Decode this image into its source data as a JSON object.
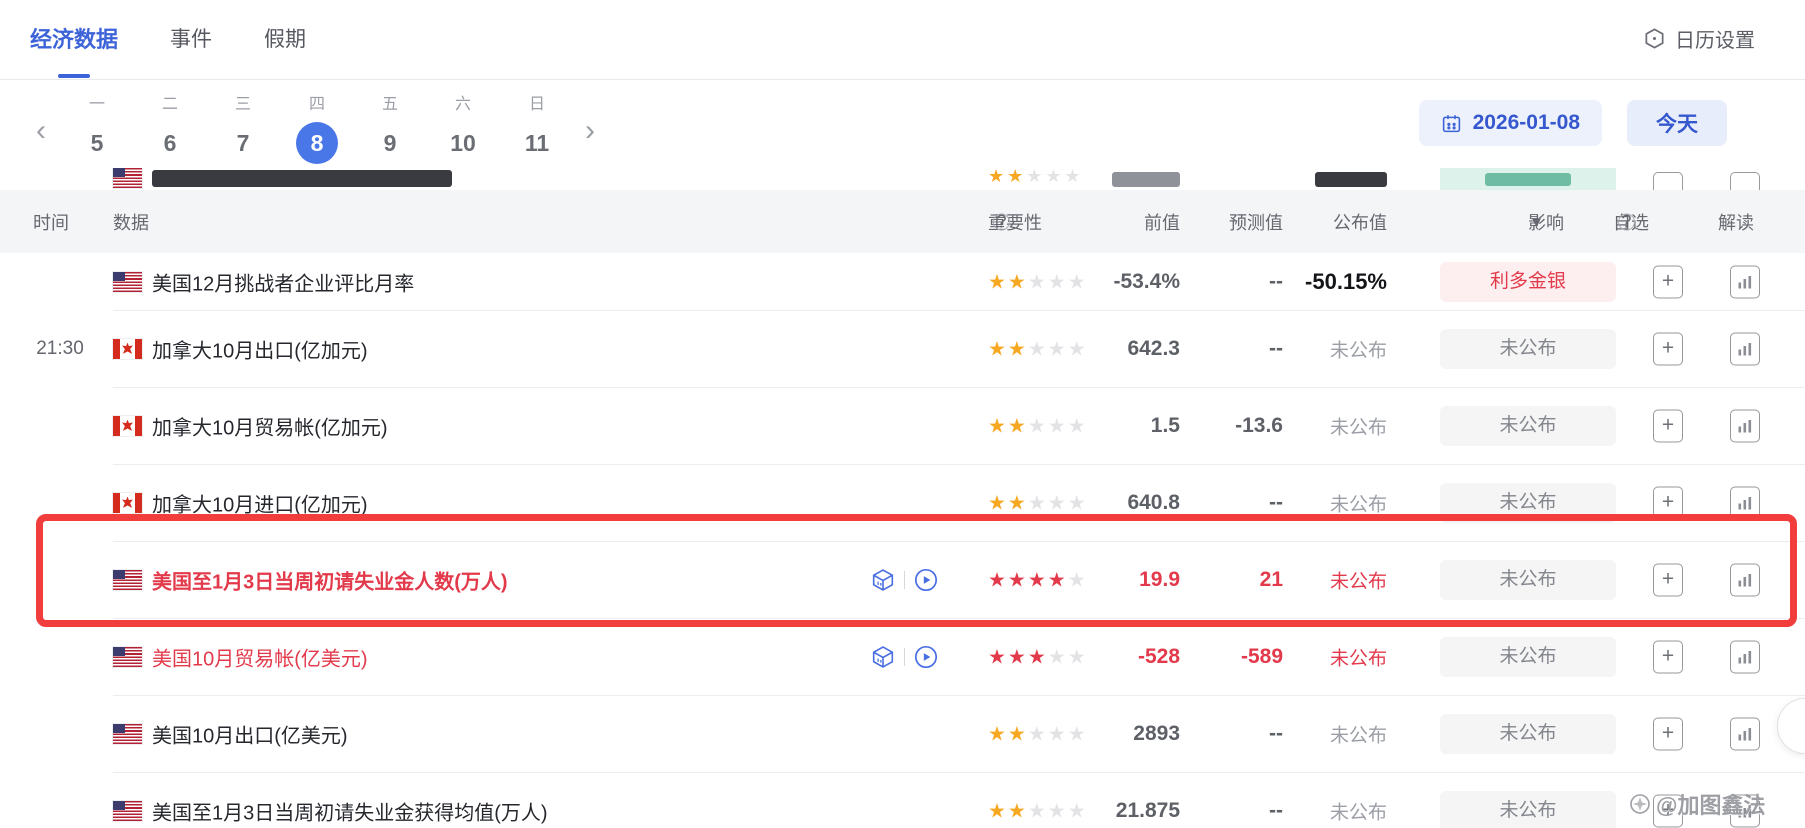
{
  "nav": {
    "tabs": [
      {
        "label": "经济数据",
        "active": true
      },
      {
        "label": "事件",
        "active": false
      },
      {
        "label": "假期",
        "active": false
      }
    ],
    "settings_label": "日历设置"
  },
  "calendar": {
    "days": [
      {
        "weekday": "一",
        "date": "5"
      },
      {
        "weekday": "二",
        "date": "6"
      },
      {
        "weekday": "三",
        "date": "7"
      },
      {
        "weekday": "四",
        "date": "8",
        "selected": true
      },
      {
        "weekday": "五",
        "date": "9"
      },
      {
        "weekday": "六",
        "date": "10"
      },
      {
        "weekday": "日",
        "date": "11"
      }
    ],
    "date_picker_value": "2026-01-08",
    "today_label": "今天"
  },
  "icons": {
    "help": "?",
    "caret_down": "▾",
    "chevron_left": "‹",
    "chevron_right": "›",
    "star": "★",
    "plus": "+"
  },
  "table": {
    "headers": {
      "time": "时间",
      "data": "数据",
      "importance": "重要性",
      "prev": "前值",
      "forecast": "预测值",
      "published": "公布值",
      "impact": "影响",
      "watch": "自选",
      "read": "解读"
    },
    "rows": [
      {
        "time": "",
        "flag": "us",
        "name": "美国12月挑战者企业评比月率",
        "name_style": "normal",
        "media": false,
        "stars": 2,
        "star_color": "orange",
        "prev": "-53.4%",
        "forecast": "--",
        "published": "-50.15%",
        "published_style": "dark",
        "impact": "利多金银",
        "impact_style": "pink",
        "value_style": "gray"
      },
      {
        "time": "21:30",
        "flag": "ca",
        "name": "加拿大10月出口(亿加元)",
        "name_style": "normal",
        "media": false,
        "stars": 2,
        "star_color": "orange",
        "prev": "642.3",
        "forecast": "--",
        "published": "未公布",
        "published_style": "gray",
        "impact": "未公布",
        "impact_style": "gray",
        "value_style": "gray"
      },
      {
        "time": "",
        "flag": "ca",
        "name": "加拿大10月贸易帐(亿加元)",
        "name_style": "normal",
        "media": false,
        "stars": 2,
        "star_color": "orange",
        "prev": "1.5",
        "forecast": "-13.6",
        "published": "未公布",
        "published_style": "gray",
        "impact": "未公布",
        "impact_style": "gray",
        "value_style": "gray"
      },
      {
        "time": "",
        "flag": "ca",
        "name": "加拿大10月进口(亿加元)",
        "name_style": "normal",
        "media": false,
        "stars": 2,
        "star_color": "orange",
        "prev": "640.8",
        "forecast": "--",
        "published": "未公布",
        "published_style": "gray",
        "impact": "未公布",
        "impact_style": "gray",
        "value_style": "gray"
      },
      {
        "time": "",
        "flag": "us",
        "name": "美国至1月3日当周初请失业金人数(万人)",
        "name_style": "red-bold",
        "media": true,
        "stars": 4,
        "star_color": "red",
        "prev": "19.9",
        "forecast": "21",
        "published": "未公布",
        "published_style": "red",
        "impact": "未公布",
        "impact_style": "gray",
        "value_style": "red",
        "highlighted": true
      },
      {
        "time": "",
        "flag": "us",
        "name": "美国10月贸易帐(亿美元)",
        "name_style": "red",
        "media": true,
        "stars": 3,
        "star_color": "red",
        "prev": "-528",
        "forecast": "-589",
        "published": "未公布",
        "published_style": "red",
        "impact": "未公布",
        "impact_style": "gray",
        "value_style": "red"
      },
      {
        "time": "",
        "flag": "us",
        "name": "美国10月出口(亿美元)",
        "name_style": "normal",
        "media": false,
        "stars": 2,
        "star_color": "orange",
        "prev": "2893",
        "forecast": "--",
        "published": "未公布",
        "published_style": "gray",
        "impact": "未公布",
        "impact_style": "gray",
        "value_style": "gray"
      },
      {
        "time": "",
        "flag": "us",
        "name": "美国至1月3日当周初请失业金获得均值(万人)",
        "name_style": "normal",
        "media": false,
        "stars": 2,
        "star_color": "orange",
        "prev": "21.875",
        "forecast": "--",
        "published": "未公布",
        "published_style": "gray",
        "impact": "未公布",
        "impact_style": "gray",
        "value_style": "gray"
      }
    ]
  },
  "watermark": "@加图鑫法",
  "colors": {
    "accent_blue": "#3d63d8",
    "selected_day_blue": "#4a77e8",
    "alert_red": "#e23a4b",
    "highlight_border_red": "#f23d3d",
    "star_orange": "#f7a823",
    "star_empty": "#e3e3e6",
    "badge_gray_bg": "#f5f5f6",
    "badge_pink_bg": "#fdeff0",
    "header_bg": "#f4f5f7"
  }
}
